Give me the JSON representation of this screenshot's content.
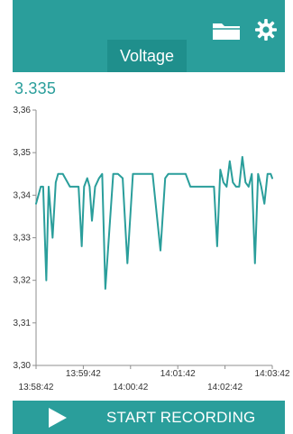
{
  "appbar": {
    "title": "Voltage",
    "icons": [
      "folder-icon",
      "gear-icon"
    ],
    "color": "#2a9e9b"
  },
  "reading": {
    "value": "3.335"
  },
  "bottom": {
    "start_label": "START RECORDING",
    "icon": "play-icon"
  },
  "chart_data": {
    "type": "line",
    "title": "",
    "xlabel": "",
    "ylabel": "",
    "ylim": [
      3.3,
      3.36
    ],
    "yticks": [
      "3,36",
      "3,35",
      "3,34",
      "3,33",
      "3,32",
      "3,31",
      "3,30"
    ],
    "ytick_values": [
      3.36,
      3.35,
      3.34,
      3.33,
      3.32,
      3.31,
      3.3
    ],
    "xlim": [
      "13:58:42",
      "14:03:42"
    ],
    "xticks_top": [
      "13:59:42",
      "14:01:42",
      "14:03:42"
    ],
    "xticks_bottom": [
      "13:58:42",
      "14:00:42",
      "14:02:42"
    ],
    "xtick_top_values": [
      "13:59:42",
      "14:01:42",
      "14:03:42"
    ],
    "xtick_bottom_values": [
      "13:58:42",
      "14:00:42",
      "14:02:42"
    ],
    "color": "#2a9e9b",
    "x": [
      "13:58:42",
      "13:58:48",
      "13:58:51",
      "13:58:55",
      "13:58:58",
      "13:59:03",
      "13:59:07",
      "13:59:10",
      "13:59:16",
      "13:59:25",
      "13:59:30",
      "13:59:33",
      "13:59:36",
      "13:59:40",
      "13:59:43",
      "13:59:47",
      "13:59:50",
      "13:59:53",
      "13:59:57",
      "14:00:02",
      "14:00:06",
      "14:00:10",
      "14:00:20",
      "14:00:26",
      "14:00:32",
      "14:00:38",
      "14:00:45",
      "14:00:50",
      "14:00:55",
      "14:01:00",
      "14:01:10",
      "14:01:20",
      "14:01:26",
      "14:01:30",
      "14:01:34",
      "14:01:38",
      "14:01:44",
      "14:01:48",
      "14:01:52",
      "14:01:58",
      "14:02:04",
      "14:02:10",
      "14:02:16",
      "14:02:20",
      "14:02:24",
      "14:02:28",
      "14:02:32",
      "14:02:36",
      "14:02:40",
      "14:02:44",
      "14:02:48",
      "14:02:52",
      "14:02:56",
      "14:03:00",
      "14:03:04",
      "14:03:08",
      "14:03:12",
      "14:03:16",
      "14:03:20",
      "14:03:24",
      "14:03:28",
      "14:03:32",
      "14:03:36",
      "14:03:40",
      "14:03:42"
    ],
    "values": [
      3.338,
      3.342,
      3.342,
      3.32,
      3.342,
      3.33,
      3.343,
      3.345,
      3.345,
      3.342,
      3.342,
      3.342,
      3.342,
      3.328,
      3.342,
      3.344,
      3.342,
      3.334,
      3.342,
      3.344,
      3.345,
      3.318,
      3.345,
      3.345,
      3.344,
      3.324,
      3.345,
      3.345,
      3.345,
      3.345,
      3.345,
      3.327,
      3.344,
      3.345,
      3.345,
      3.345,
      3.345,
      3.345,
      3.345,
      3.342,
      3.342,
      3.342,
      3.342,
      3.342,
      3.342,
      3.342,
      3.328,
      3.346,
      3.343,
      3.342,
      3.348,
      3.343,
      3.342,
      3.342,
      3.349,
      3.343,
      3.342,
      3.345,
      3.324,
      3.345,
      3.342,
      3.338,
      3.345,
      3.345,
      3.344
    ]
  }
}
